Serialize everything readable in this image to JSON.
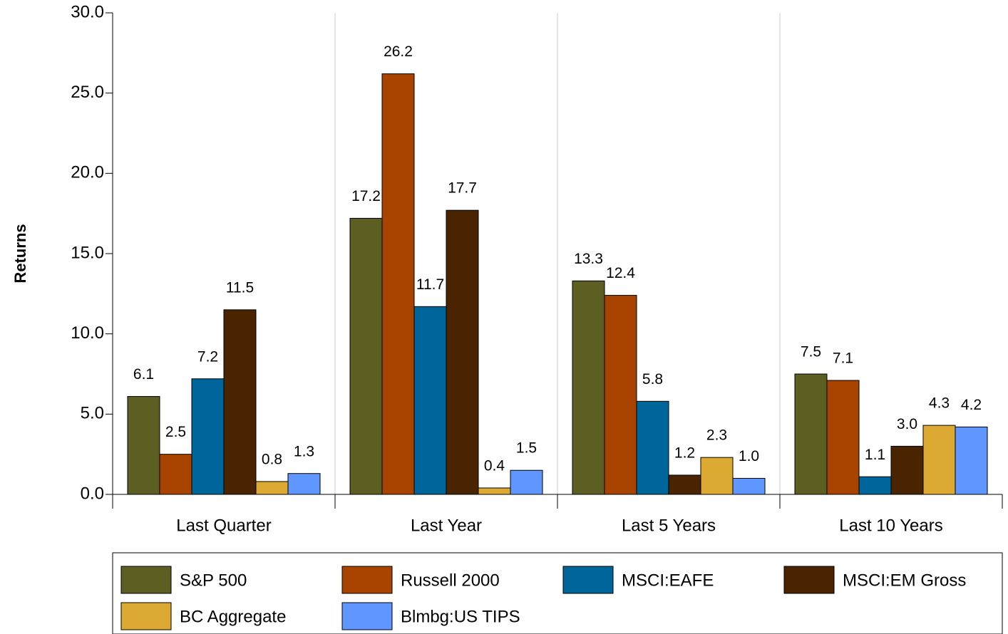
{
  "chart_data": {
    "type": "bar",
    "y_label": "Returns",
    "categories": [
      "Last Quarter",
      "Last Year",
      "Last 5 Years",
      "Last 10 Years"
    ],
    "series": [
      {
        "name": "S&P 500",
        "color": "#5c5e22",
        "values": [
          6.1,
          17.2,
          13.3,
          7.5
        ],
        "value_labels": [
          "6.1",
          "17.2",
          "13.3",
          "7.5"
        ]
      },
      {
        "name": "Russell 2000",
        "color": "#a84300",
        "values": [
          2.5,
          26.2,
          12.4,
          7.1
        ],
        "value_labels": [
          "2.5",
          "26.2",
          "12.4",
          "7.1"
        ]
      },
      {
        "name": "MSCI:EAFE",
        "color": "#00659a",
        "values": [
          7.2,
          11.7,
          5.8,
          1.1
        ],
        "value_labels": [
          "7.2",
          "11.7",
          "5.8",
          "1.1"
        ]
      },
      {
        "name": "MSCI:EM Gross",
        "color": "#4a2400",
        "values": [
          11.5,
          17.7,
          1.2,
          3.0
        ],
        "value_labels": [
          "11.5",
          "17.7",
          "1.2",
          "3.0"
        ]
      },
      {
        "name": "BC Aggregate",
        "color": "#dcaa32",
        "values": [
          0.8,
          0.4,
          2.3,
          4.3
        ],
        "value_labels": [
          "0.8",
          "0.4",
          "2.3",
          "4.3"
        ]
      },
      {
        "name": "Blmbg:US TIPS",
        "color": "#5f96ff",
        "values": [
          1.3,
          1.5,
          1.0,
          4.2
        ],
        "value_labels": [
          "1.3",
          "1.5",
          "1.0",
          "4.2"
        ]
      }
    ],
    "ylim": [
      0,
      30
    ],
    "yticks": [
      {
        "value": 0,
        "label": "0.0"
      },
      {
        "value": 5,
        "label": "5.0"
      },
      {
        "value": 10,
        "label": "10.0"
      },
      {
        "value": 15,
        "label": "15.0"
      },
      {
        "value": 20,
        "label": "20.0"
      },
      {
        "value": 25,
        "label": "25.0"
      },
      {
        "value": 30,
        "label": "30.0"
      }
    ],
    "legend": "bottom"
  }
}
